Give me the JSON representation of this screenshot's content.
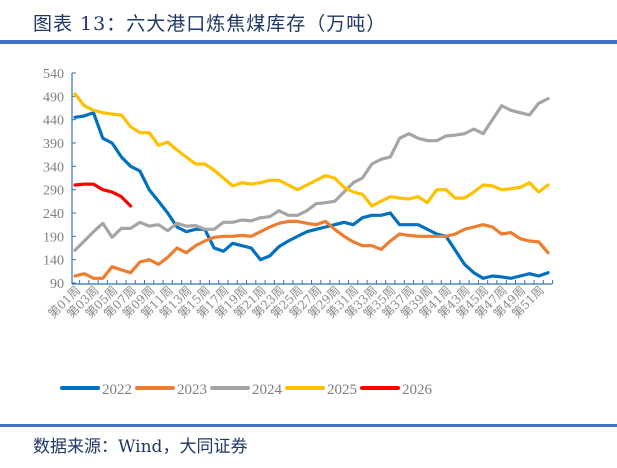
{
  "title": "图表 13：六大港口炼焦煤库存（万吨）",
  "source": "数据来源：Wind，大同证券",
  "chart_data": {
    "type": "line",
    "title": "图表 13：六大港口炼焦煤库存（万吨）",
    "xlabel": "",
    "ylabel": "",
    "ylim": [
      90,
      540
    ],
    "yticks": [
      90,
      140,
      190,
      240,
      290,
      340,
      390,
      440,
      490,
      540
    ],
    "x_tick_labels": [
      "第01周",
      "第03周",
      "第05周",
      "第07周",
      "第09周",
      "第11周",
      "第13周",
      "第15周",
      "第17周",
      "第19周",
      "第21周",
      "第23周",
      "第25周",
      "第27周",
      "第29周",
      "第31周",
      "第33周",
      "第35周",
      "第37周",
      "第39周",
      "第41周",
      "第43周",
      "第45周",
      "第47周",
      "第49周",
      "第51周"
    ],
    "weeks": 52,
    "grid": false,
    "legend_position": "bottom",
    "series": [
      {
        "name": "2022",
        "color": "#0070c0",
        "values": [
          445,
          448,
          455,
          400,
          390,
          360,
          340,
          330,
          290,
          265,
          240,
          210,
          200,
          205,
          205,
          165,
          158,
          175,
          170,
          165,
          140,
          148,
          168,
          180,
          190,
          200,
          205,
          210,
          215,
          220,
          215,
          230,
          235,
          235,
          240,
          215,
          215,
          215,
          205,
          195,
          190,
          160,
          130,
          112,
          100,
          105,
          103,
          100,
          105,
          110,
          105,
          112
        ]
      },
      {
        "name": "2023",
        "color": "#ed7d31",
        "values": [
          105,
          110,
          100,
          100,
          125,
          118,
          112,
          135,
          140,
          130,
          145,
          165,
          155,
          170,
          180,
          188,
          190,
          190,
          192,
          190,
          200,
          210,
          218,
          222,
          222,
          218,
          215,
          222,
          205,
          190,
          178,
          170,
          170,
          162,
          180,
          195,
          192,
          190,
          190,
          190,
          190,
          195,
          205,
          210,
          215,
          210,
          195,
          198,
          185,
          180,
          178,
          155
        ]
      },
      {
        "name": "2024",
        "color": "#a5a5a5",
        "values": [
          160,
          180,
          200,
          218,
          188,
          207,
          207,
          220,
          212,
          215,
          202,
          218,
          212,
          213,
          205,
          205,
          220,
          220,
          225,
          223,
          230,
          232,
          245,
          235,
          235,
          245,
          260,
          262,
          265,
          285,
          305,
          315,
          345,
          355,
          360,
          400,
          410,
          400,
          395,
          395,
          405,
          407,
          410,
          420,
          410,
          440,
          470,
          460,
          455,
          450,
          475,
          485
        ]
      },
      {
        "name": "2025",
        "color": "#ffc000",
        "values": [
          495,
          470,
          460,
          455,
          452,
          450,
          425,
          412,
          412,
          385,
          392,
          375,
          360,
          345,
          345,
          332,
          315,
          298,
          305,
          302,
          305,
          310,
          310,
          300,
          290,
          300,
          310,
          320,
          315,
          295,
          285,
          280,
          255,
          265,
          275,
          272,
          270,
          275,
          262,
          290,
          290,
          272,
          272,
          285,
          300,
          298,
          290,
          292,
          295,
          305,
          285,
          300
        ]
      },
      {
        "name": "2026",
        "color": "#ff0000",
        "values": [
          300,
          302,
          302,
          290,
          285,
          275,
          255
        ]
      }
    ]
  }
}
